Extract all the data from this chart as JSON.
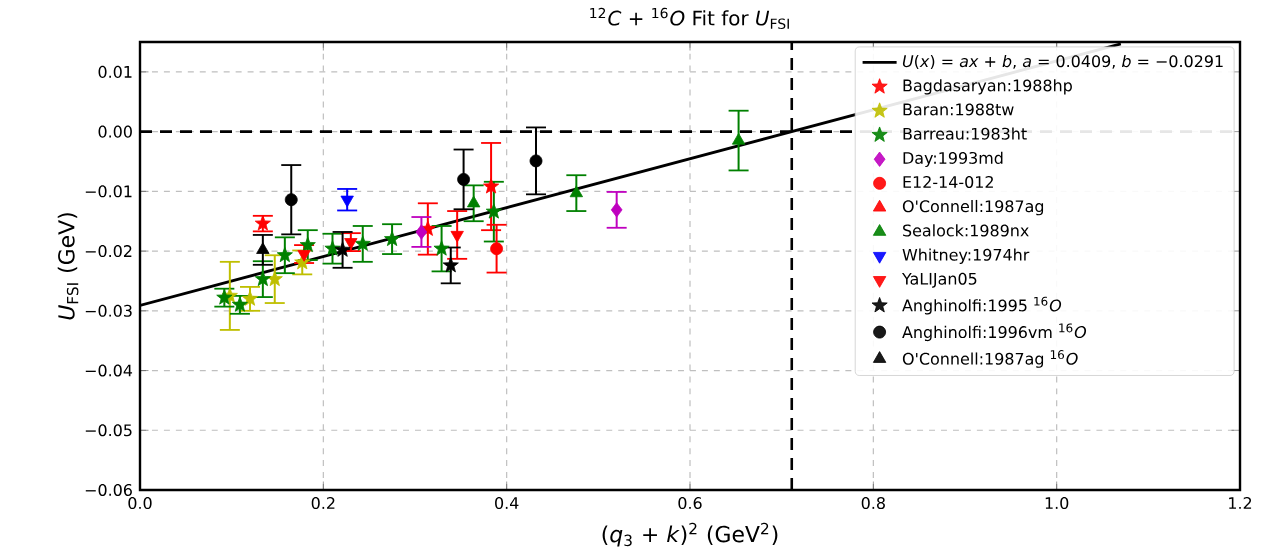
{
  "chart_data": {
    "type": "scatter",
    "title": "$^{12}$*C* + $^{16}$*O* Fit for *U*$_{FSI}$",
    "xlabel": "(*q*$_{3}$ + *k*)$^{2}$ (GeV$^{2}$)",
    "ylabel": "*U*$_{FSI}$ (GeV)",
    "xlim": [
      0,
      1.2
    ],
    "ylim": [
      -0.06,
      0.015
    ],
    "xticks": [
      {
        "value": 0,
        "label": "0.0"
      },
      {
        "value": 0.2,
        "label": "0.2"
      },
      {
        "value": 0.4,
        "label": "0.4"
      },
      {
        "value": 0.6,
        "label": "0.6"
      },
      {
        "value": 0.8,
        "label": "0.8"
      },
      {
        "value": 1.0,
        "label": "1.0"
      },
      {
        "value": 1.2,
        "label": "1.2"
      }
    ],
    "yticks": [
      {
        "value": -0.06,
        "label": "−0.06"
      },
      {
        "value": -0.05,
        "label": "−0.05"
      },
      {
        "value": -0.04,
        "label": "−0.04"
      },
      {
        "value": -0.03,
        "label": "−0.03"
      },
      {
        "value": -0.02,
        "label": "−0.02"
      },
      {
        "value": -0.01,
        "label": "−0.01"
      },
      {
        "value": 0,
        "label": "0.00"
      },
      {
        "value": 0.01,
        "label": "0.01"
      }
    ],
    "grid": true,
    "legend": "top right",
    "ref_lines": [
      {
        "axis": "y",
        "value": 0,
        "color": "#000000",
        "line_style": "dashed"
      },
      {
        "axis": "x",
        "value": 0.711,
        "color": "#000000",
        "line_style": "dashed"
      }
    ],
    "series": [
      {
        "name": "*U*(*x*) = *ax* + *b*, *a* = 0.0409, *b* = −0.0291",
        "type": "line",
        "color": "#000000",
        "line_style": "solid",
        "marker": "none",
        "x": [
          0,
          1.07
        ],
        "values": [
          -0.0291,
          0.0147
        ]
      },
      {
        "name": "Bagdasaryan:1988hp",
        "color": "#ff0000",
        "marker": "star",
        "x": [
          0.134,
          0.314,
          0.383
        ],
        "values": [
          -0.0154,
          -0.0163,
          -0.0092
        ],
        "errors": [
          0.0013,
          0.0043,
          0.0073
        ]
      },
      {
        "name": "Baran:1988tw",
        "color": "#bfbf00",
        "marker": "star",
        "x": [
          0.098,
          0.12,
          0.147,
          0.177
        ],
        "values": [
          -0.0275,
          -0.028,
          -0.0247,
          -0.0219
        ],
        "errors": [
          0.0057,
          0.002,
          0.004,
          0.002
        ]
      },
      {
        "name": "Barreau:1983ht",
        "color": "#008000",
        "marker": "star",
        "x": [
          0.092,
          0.109,
          0.134,
          0.158,
          0.183,
          0.21,
          0.243,
          0.275,
          0.329,
          0.386
        ],
        "values": [
          -0.0278,
          -0.029,
          -0.0247,
          -0.0207,
          -0.019,
          -0.0196,
          -0.0188,
          -0.018,
          -0.0196,
          -0.0134
        ],
        "errors": [
          0.0015,
          0.0015,
          0.003,
          0.003,
          0.0025,
          0.0025,
          0.003,
          0.0025,
          0.0038,
          0.005
        ]
      },
      {
        "name": "Day:1993md",
        "color": "#bf00bf",
        "marker": "diamond",
        "x": [
          0.307,
          0.52
        ],
        "values": [
          -0.0168,
          -0.0131
        ],
        "errors": [
          0.0025,
          0.003
        ]
      },
      {
        "name": "E12-14-012",
        "color": "#ff0000",
        "marker": "circle",
        "x": [
          0.389
        ],
        "values": [
          -0.0196
        ],
        "errors": [
          0.004
        ]
      },
      {
        "name": "O'Connell:1987ag",
        "color": "#ff0000",
        "marker": "triangle"
      },
      {
        "name": "Sealock:1989nx",
        "color": "#008000",
        "marker": "triangle",
        "x": [
          0.364,
          0.476,
          0.653
        ],
        "values": [
          -0.012,
          -0.0103,
          -0.0015
        ],
        "errors": [
          0.003,
          0.003,
          0.005
        ]
      },
      {
        "name": "Whitney:1974hr",
        "color": "#0000ff",
        "marker": "triangle_down",
        "x": [
          0.226
        ],
        "values": [
          -0.0114
        ],
        "errors": [
          0.0018
        ]
      },
      {
        "name": "YaLIJan05",
        "color": "#ff0000",
        "marker": "triangle_down",
        "x": [
          0.179,
          0.23,
          0.346
        ],
        "values": [
          -0.0205,
          -0.0185,
          -0.0173
        ],
        "errors": [
          0.0015,
          0.0015,
          0.004
        ]
      },
      {
        "name": "Anghinolfi:1995 $^{16}$*O*",
        "color": "#000000",
        "marker": "star",
        "x": [
          0.221,
          0.339
        ],
        "values": [
          -0.0198,
          -0.0224
        ],
        "errors": [
          0.003,
          0.003
        ]
      },
      {
        "name": "Anghinolfi:1996vm $^{16}$*O*",
        "color": "#000000",
        "marker": "circle",
        "x": [
          0.165,
          0.353,
          0.432
        ],
        "values": [
          -0.0114,
          -0.008,
          -0.0049
        ],
        "errors": [
          0.0058,
          0.005,
          0.0056
        ]
      },
      {
        "name": "O'Connell:1987ag $^{16}$*O*",
        "color": "#000000",
        "marker": "triangle",
        "x": [
          0.134
        ],
        "values": [
          -0.0198
        ],
        "errors": [
          0.0025
        ]
      }
    ]
  }
}
